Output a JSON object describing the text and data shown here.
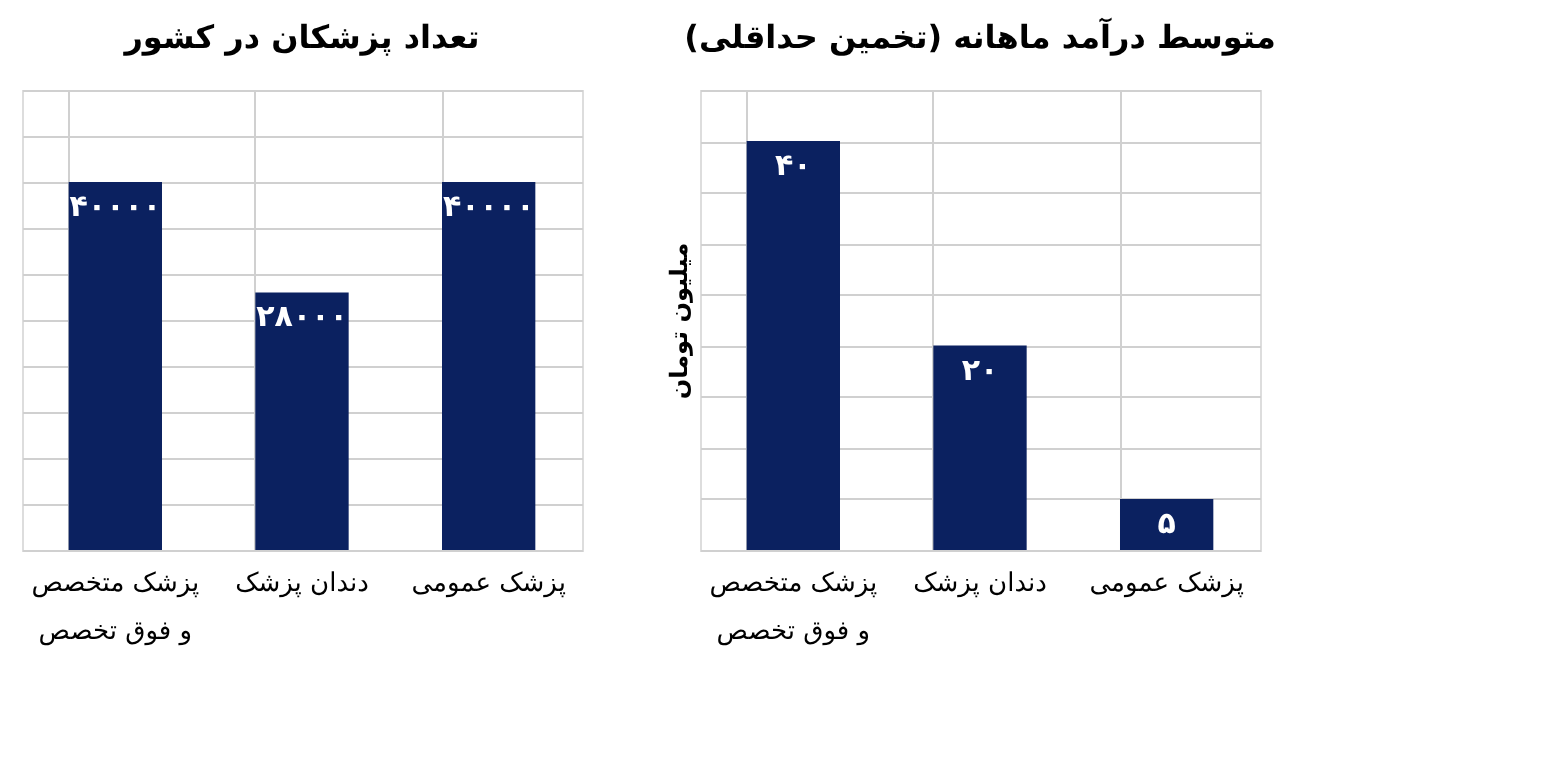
{
  "chart_data": [
    {
      "type": "bar",
      "title": "تعداد پزشکان در کشور",
      "categories": [
        "پزشک متخصص\nو فوق تخصص",
        "دندان پزشک",
        "پزشک عمومی"
      ],
      "values": [
        40000,
        28000,
        40000
      ],
      "value_labels": [
        "۴۰۰۰۰",
        "۲۸۰۰۰",
        "۴۰۰۰۰"
      ],
      "color": "#0b2160",
      "ylim": [
        0,
        50000
      ],
      "yticks": [
        {
          "value": 0,
          "label": null
        },
        {
          "value": 5000,
          "label": null
        },
        {
          "value": 10000,
          "label": null
        },
        {
          "value": 15000,
          "label": null
        },
        {
          "value": 20000,
          "label": null
        },
        {
          "value": 25000,
          "label": null
        },
        {
          "value": 30000,
          "label": null
        },
        {
          "value": 35000,
          "label": null
        },
        {
          "value": 40000,
          "label": null
        },
        {
          "value": 45000,
          "label": null
        },
        {
          "value": 50000,
          "label": null
        }
      ],
      "grid": true,
      "tick_labels": "x"
    },
    {
      "type": "bar",
      "title": "متوسط درآمد ماهانه (تخمین حداقلی)",
      "ylabel": "میلیون تومان",
      "categories": [
        "پزشک متخصص\nو فوق تخصص",
        "دندان پزشک",
        "پزشک عمومی"
      ],
      "values": [
        40,
        20,
        5
      ],
      "value_labels": [
        "۴۰",
        "۲۰",
        "۵"
      ],
      "color": "#0b2160",
      "ylim": [
        0,
        45
      ],
      "yticks": [
        {
          "value": 0,
          "label": null
        },
        {
          "value": 5,
          "label": null
        },
        {
          "value": 10,
          "label": null
        },
        {
          "value": 15,
          "label": null
        },
        {
          "value": 20,
          "label": null
        },
        {
          "value": 25,
          "label": null
        },
        {
          "value": 30,
          "label": null
        },
        {
          "value": 35,
          "label": null
        },
        {
          "value": 40,
          "label": null
        },
        {
          "value": 45,
          "label": null
        }
      ],
      "grid": true,
      "tick_labels": "x"
    }
  ]
}
